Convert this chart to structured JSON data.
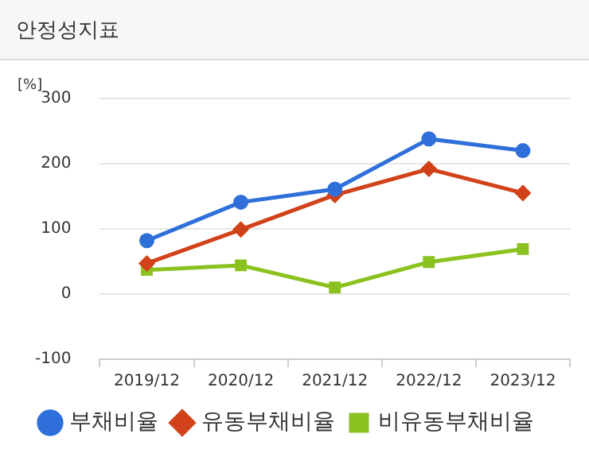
{
  "chart_data": {
    "type": "line",
    "title": "안정성지표",
    "ylabel": "[%]",
    "categories": [
      "2019/12",
      "2020/12",
      "2021/12",
      "2022/12",
      "2023/12"
    ],
    "series": [
      {
        "name": "부채비율",
        "color": "#2e6fd9",
        "marker": "circle",
        "values": [
          82,
          141,
          161,
          238,
          220
        ]
      },
      {
        "name": "유동부채비율",
        "color": "#d2421a",
        "marker": "diamond",
        "values": [
          47,
          99,
          152,
          192,
          155
        ]
      },
      {
        "name": "비유동부채비율",
        "color": "#8cc21f",
        "marker": "square",
        "values": [
          37,
          44,
          10,
          49,
          69
        ]
      }
    ],
    "ylim": [
      -100,
      300
    ],
    "yticks": [
      -100,
      0,
      100,
      200,
      300
    ],
    "grid": "y",
    "legend": "bottom"
  }
}
